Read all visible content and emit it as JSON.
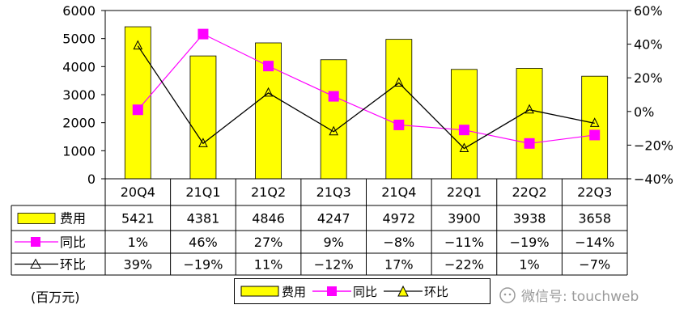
{
  "chart_data": {
    "type": "bar",
    "categories": [
      "20Q4",
      "21Q1",
      "21Q2",
      "21Q3",
      "21Q4",
      "22Q1",
      "22Q2",
      "22Q3"
    ],
    "series": [
      {
        "name": "费用",
        "kind": "bar",
        "axis": "left",
        "color": "#ffff00",
        "values": [
          5421,
          4381,
          4846,
          4247,
          4972,
          3900,
          3938,
          3658
        ],
        "labels": [
          "5421",
          "4381",
          "4846",
          "4247",
          "4972",
          "3900",
          "3938",
          "3658"
        ]
      },
      {
        "name": "同比",
        "kind": "line",
        "axis": "right",
        "color": "#ff00ff",
        "marker": "square",
        "values": [
          1,
          46,
          27,
          9,
          -8,
          -11,
          -19,
          -14
        ],
        "labels": [
          "1%",
          "46%",
          "27%",
          "9%",
          "-8%",
          "-11%",
          "-19%",
          "-14%"
        ]
      },
      {
        "name": "环比",
        "kind": "line",
        "axis": "right",
        "color": "#000000",
        "marker": "triangle",
        "values": [
          39,
          -19,
          11,
          -12,
          17,
          -22,
          1,
          -7
        ],
        "labels": [
          "39%",
          "-19%",
          "11%",
          "-12%",
          "17%",
          "-22%",
          "1%",
          "-7%"
        ]
      }
    ],
    "y_left": {
      "ylim": [
        0,
        6000
      ],
      "ticks": [
        "0",
        "1000",
        "2000",
        "3000",
        "4000",
        "5000",
        "6000"
      ]
    },
    "y_right": {
      "ylim": [
        -40,
        60
      ],
      "ticks": [
        "-40%",
        "-20%",
        "0%",
        "20%",
        "40%",
        "60%"
      ]
    },
    "grid": false,
    "legend": "bottom-center"
  },
  "unit_label": "(百万元)",
  "watermark": "微信号: touchweb"
}
